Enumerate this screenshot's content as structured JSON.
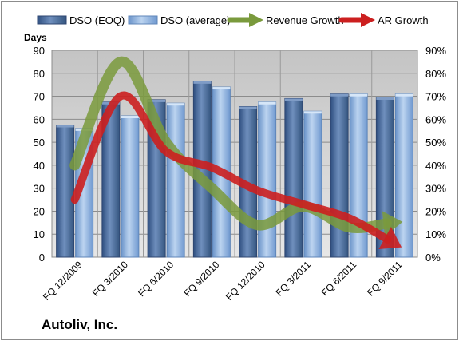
{
  "company": "Autoliv, Inc.",
  "chart_data": {
    "type": "bar",
    "ylabel": "Days",
    "ylim": [
      0,
      90
    ],
    "yticks": [
      0,
      10,
      20,
      30,
      40,
      50,
      60,
      70,
      80,
      90
    ],
    "y2lim": [
      0,
      90
    ],
    "y2ticks": [
      "0%",
      "10%",
      "20%",
      "30%",
      "40%",
      "50%",
      "60%",
      "70%",
      "80%",
      "90%"
    ],
    "categories": [
      "FQ 12/2009",
      "FQ 3/2010",
      "FQ 6/2010",
      "FQ 9/2010",
      "FQ 12/2010",
      "FQ 3/2011",
      "FQ 6/2011",
      "FQ 9/2011"
    ],
    "legend_position": "top",
    "series": [
      {
        "name": "DSO (EOQ)",
        "kind": "bar",
        "color": "#4f6f9f",
        "values": [
          57.5,
          67.5,
          68.5,
          76.5,
          65.5,
          69,
          71,
          69.5
        ]
      },
      {
        "name": "DSO (average)",
        "kind": "bar",
        "color": "#8fb3e0",
        "values": [
          56,
          61.5,
          67,
          74,
          67.5,
          63.5,
          71,
          71
        ]
      },
      {
        "name": "Revenue Growth",
        "kind": "line",
        "axis": "secondary",
        "color": "#7a9a3c",
        "values": [
          40,
          85,
          50,
          30,
          14,
          22,
          13,
          15
        ]
      },
      {
        "name": "AR Growth",
        "kind": "line",
        "axis": "secondary",
        "color": "#cc1f1f",
        "values": [
          25,
          70,
          46,
          39,
          29,
          23,
          17,
          6
        ]
      }
    ]
  }
}
